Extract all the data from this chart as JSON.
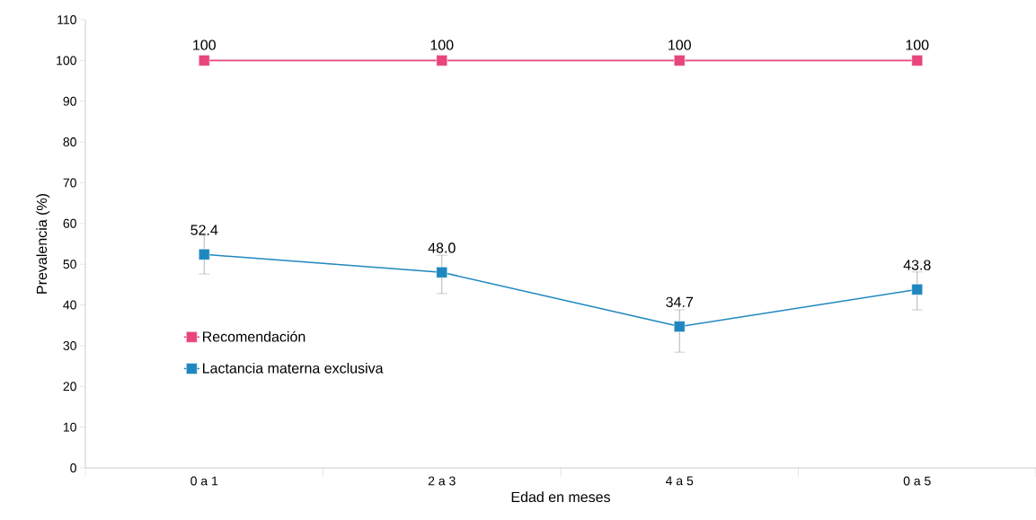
{
  "chart_data": {
    "type": "line",
    "xlabel": "Edad en meses",
    "ylabel": "Prevalencia (%)",
    "categories": [
      "0 a 1",
      "2 a 3",
      "4 a 5",
      "0 a 5"
    ],
    "series": [
      {
        "name": "Recomendación",
        "color": "#e8457a",
        "values": [
          100,
          100,
          100,
          100
        ],
        "value_labels": [
          "100",
          "100",
          "100",
          "100"
        ]
      },
      {
        "name": "Lactancia materna exclusiva",
        "color": "#1f87bf",
        "values": [
          52.4,
          48.0,
          34.7,
          43.8
        ],
        "value_labels": [
          "52.4",
          "48.0",
          "34.7",
          "43.8"
        ],
        "errors": [
          [
            47.6,
            57.1
          ],
          [
            42.8,
            52.2
          ],
          [
            28.4,
            38.8
          ],
          [
            38.8,
            48.1
          ]
        ]
      }
    ],
    "ylim": [
      0,
      110
    ],
    "yticks": [
      0,
      10,
      20,
      30,
      40,
      50,
      60,
      70,
      80,
      90,
      100,
      110
    ],
    "marker": "square",
    "line_style": "solid",
    "legend": "bottom left",
    "grid": false
  }
}
